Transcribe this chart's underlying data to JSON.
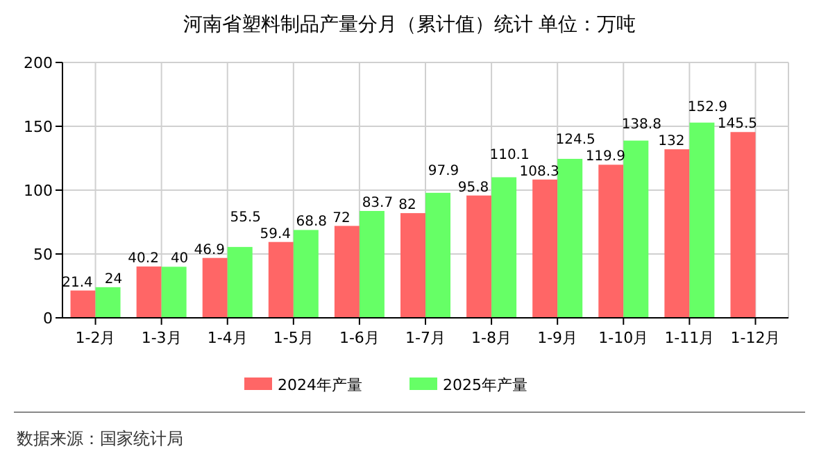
{
  "chart_data": {
    "type": "bar",
    "title": "河南省塑料制品产量分月（累计值）统计  单位：万吨",
    "categories": [
      "1-2月",
      "1-3月",
      "1-4月",
      "1-5月",
      "1-6月",
      "1-7月",
      "1-8月",
      "1-9月",
      "1-10月",
      "1-11月",
      "1-12月"
    ],
    "series": [
      {
        "name": "2024年产量",
        "color": "#ff6666",
        "values": [
          21.4,
          40.2,
          46.9,
          59.4,
          72,
          82,
          95.8,
          108.3,
          119.9,
          132,
          145.5
        ]
      },
      {
        "name": "2025年产量",
        "color": "#66ff66",
        "values": [
          24,
          40,
          55.5,
          68.8,
          83.7,
          97.9,
          110.1,
          124.5,
          138.8,
          152.9,
          null
        ]
      }
    ],
    "ylim": [
      0,
      200
    ],
    "yticks": [
      0,
      50,
      100,
      150,
      200
    ],
    "grid": true,
    "legend": "bottom",
    "data_labels": true,
    "annotations": [
      "数据来源：国家统计局"
    ]
  }
}
